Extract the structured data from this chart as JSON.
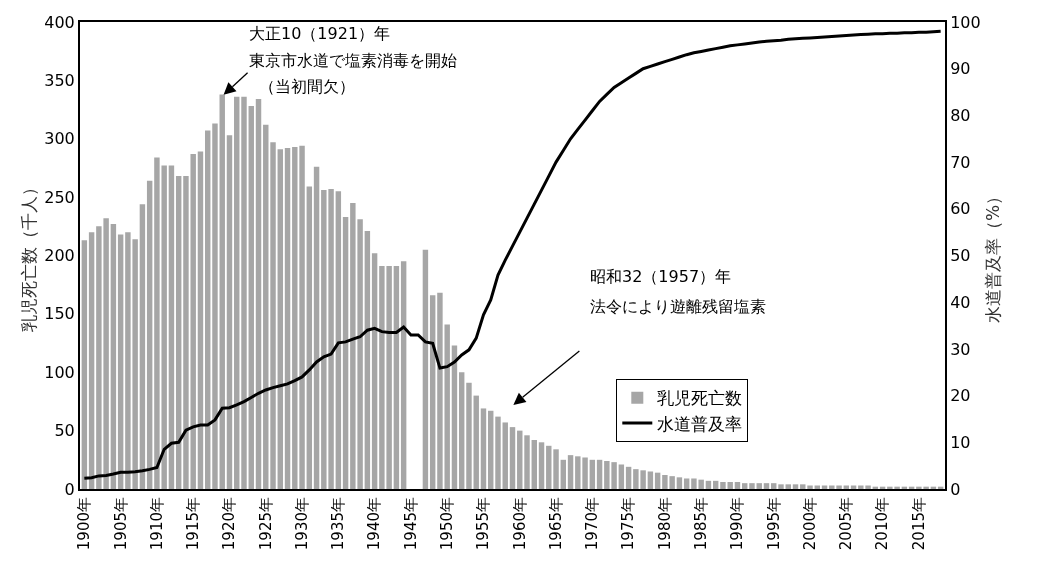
{
  "chart_data": {
    "type": "bar",
    "categories": [
      "1900年",
      null,
      null,
      null,
      null,
      "1905年",
      null,
      null,
      null,
      null,
      "1910年",
      null,
      null,
      null,
      null,
      "1915年",
      null,
      null,
      null,
      null,
      "1920年",
      null,
      null,
      null,
      null,
      "1925年",
      null,
      null,
      null,
      null,
      "1930年",
      null,
      null,
      null,
      null,
      "1935年",
      null,
      null,
      null,
      null,
      "1940年",
      null,
      null,
      null,
      null,
      "1945年",
      null,
      null,
      null,
      null,
      "1950年",
      null,
      null,
      null,
      null,
      "1955年",
      null,
      null,
      null,
      null,
      "1960年",
      null,
      null,
      null,
      null,
      "1965年",
      null,
      null,
      null,
      null,
      "1970年",
      null,
      null,
      null,
      null,
      "1975年",
      null,
      null,
      null,
      null,
      "1980年",
      null,
      null,
      null,
      null,
      "1985年",
      null,
      null,
      null,
      null,
      "1990年",
      null,
      null,
      null,
      null,
      "1995年",
      null,
      null,
      null,
      null,
      "2000年",
      null,
      null,
      null,
      null,
      "2005年",
      null,
      null,
      null,
      null,
      "2010年",
      null,
      null,
      null,
      null,
      "2015年",
      null,
      null,
      null
    ],
    "series": [
      {
        "name": "乳児死亡数",
        "color": "#a6a6a6",
        "values": [
          213,
          220,
          225,
          232,
          227,
          218,
          220,
          214,
          244,
          264,
          284,
          277,
          277,
          268,
          268,
          287,
          289,
          307,
          313,
          338,
          303,
          336,
          336,
          328,
          334,
          312,
          297,
          291,
          292,
          293,
          294,
          259,
          276,
          256,
          257,
          255,
          233,
          245,
          231,
          221,
          202,
          191,
          191,
          191,
          195,
          null,
          null,
          205,
          166,
          168,
          141,
          123,
          100,
          91,
          80,
          69,
          67,
          62,
          57,
          53,
          50,
          46,
          42,
          40,
          37,
          34,
          25,
          29,
          28,
          27,
          25,
          25,
          24,
          23,
          21,
          19,
          17,
          16,
          15,
          14,
          12,
          11,
          10,
          9,
          9,
          8,
          7,
          7,
          6,
          6,
          6,
          5,
          5,
          5,
          5,
          5,
          4,
          4,
          4,
          4,
          3,
          3,
          3,
          3,
          3,
          3,
          3,
          3,
          3,
          2,
          2,
          2,
          2,
          2,
          2,
          2,
          2,
          2,
          2
        ]
      },
      {
        "name": "水道普及率",
        "type": "line",
        "axis": "y2",
        "color": "#000000",
        "values": [
          2.3,
          2.4,
          2.8,
          2.9,
          3.2,
          3.6,
          3.6,
          3.7,
          3.9,
          4.2,
          4.6,
          8.5,
          9.8,
          10,
          12.6,
          13.3,
          13.7,
          13.7,
          14.8,
          17.3,
          17.4,
          18,
          18.7,
          19.6,
          20.5,
          21.2,
          21.7,
          22.1,
          22.5,
          23.2,
          24,
          25.5,
          27.2,
          28.3,
          28.9,
          31.3,
          31.5,
          32.1,
          32.6,
          34,
          34.4,
          33.7,
          33.5,
          33.5,
          34.7,
          33,
          33,
          31.5,
          31.2,
          25.9,
          26.2,
          27.2,
          28.7,
          29.8,
          32.3,
          37.3,
          40.5,
          45.8,
          49,
          52,
          55,
          58,
          61,
          64,
          67,
          70,
          72.5,
          75,
          77,
          79,
          81,
          83,
          84.5,
          86,
          87,
          88,
          89,
          90,
          90.5,
          91,
          91.5,
          92,
          92.5,
          93,
          93.4,
          93.7,
          94,
          94.3,
          94.6,
          94.9,
          95.1,
          95.3,
          95.5,
          95.7,
          95.9,
          96,
          96.1,
          96.3,
          96.4,
          96.5,
          96.6,
          96.7,
          96.8,
          96.9,
          97,
          97.1,
          97.2,
          97.3,
          97.4,
          97.5,
          97.5,
          97.6,
          97.6,
          97.7,
          97.7,
          97.8,
          97.8,
          97.9,
          98
        ]
      }
    ],
    "ylabel": "乳児死亡数（千人）",
    "y2label": "水道普及率（%）",
    "ylim": [
      0,
      400
    ],
    "yticks": [
      0,
      50,
      100,
      150,
      200,
      250,
      300,
      350,
      400
    ],
    "y2lim": [
      0,
      100
    ],
    "y2ticks": [
      0,
      10,
      20,
      30,
      40,
      50,
      60,
      70,
      80,
      90,
      100
    ],
    "annotations": [
      "大正10（1921）年",
      "東京市水道で塩素消毒を開始",
      "（当初間欠）",
      "昭和32（1957）年",
      "法令により遊離残留塩素"
    ],
    "grid": false,
    "legend": "bottom right"
  }
}
